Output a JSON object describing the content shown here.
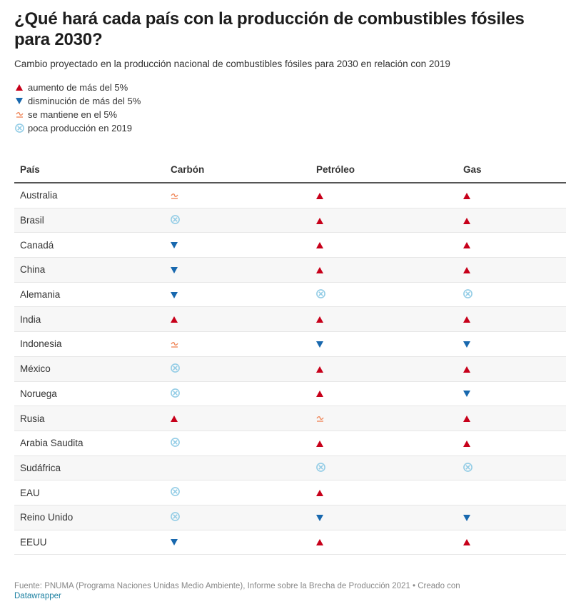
{
  "header": {
    "title": "¿Qué hará cada país con la producción de combustibles fósiles para 2030?",
    "subtitle": "Cambio proyectado en la producción nacional de combustibles fósiles para 2030 en relación con 2019"
  },
  "colors": {
    "increase": "#c7001a",
    "decrease": "#1868ae",
    "stable": "#f08a5d",
    "low": "#94cde6"
  },
  "legend": [
    {
      "symbol": "increase",
      "icon": "triangle-up-icon",
      "label": "aumento de más del 5%"
    },
    {
      "symbol": "decrease",
      "icon": "triangle-down-icon",
      "label": "disminución de más del 5%"
    },
    {
      "symbol": "stable",
      "icon": "approx-equal-icon",
      "label": "se mantiene en el 5%"
    },
    {
      "symbol": "low",
      "icon": "circled-x-icon",
      "label": "poca producción en 2019"
    }
  ],
  "chart_data": {
    "type": "table",
    "title": "¿Qué hará cada país con la producción de combustibles fósiles para 2030?",
    "subtitle": "Cambio proyectado en la producción nacional de combustibles fósiles para 2030 en relación con 2019",
    "columns": [
      "País",
      "Carbón",
      "Petróleo",
      "Gas"
    ],
    "rows": [
      {
        "country": "Australia",
        "coal": "stable",
        "oil": "increase",
        "gas": "increase"
      },
      {
        "country": "Brasil",
        "coal": "low",
        "oil": "increase",
        "gas": "increase"
      },
      {
        "country": "Canadá",
        "coal": "decrease",
        "oil": "increase",
        "gas": "increase"
      },
      {
        "country": "China",
        "coal": "decrease",
        "oil": "increase",
        "gas": "increase"
      },
      {
        "country": "Alemania",
        "coal": "decrease",
        "oil": "low",
        "gas": "low"
      },
      {
        "country": "India",
        "coal": "increase",
        "oil": "increase",
        "gas": "increase"
      },
      {
        "country": "Indonesia",
        "coal": "stable",
        "oil": "decrease",
        "gas": "decrease"
      },
      {
        "country": "México",
        "coal": "low",
        "oil": "increase",
        "gas": "increase"
      },
      {
        "country": "Noruega",
        "coal": "low",
        "oil": "increase",
        "gas": "decrease"
      },
      {
        "country": "Rusia",
        "coal": "increase",
        "oil": "stable",
        "gas": "increase"
      },
      {
        "country": "Arabia Saudita",
        "coal": "low",
        "oil": "increase",
        "gas": "increase"
      },
      {
        "country": "Sudáfrica",
        "coal": "",
        "oil": "low",
        "gas": "low"
      },
      {
        "country": "EAU",
        "coal": "low",
        "oil": "increase",
        "gas": ""
      },
      {
        "country": "Reino Unido",
        "coal": "low",
        "oil": "decrease",
        "gas": "decrease"
      },
      {
        "country": "EEUU",
        "coal": "decrease",
        "oil": "increase",
        "gas": "increase"
      }
    ]
  },
  "footer": {
    "source": "Fuente: PNUMA (Programa Naciones Unidas Medio Ambiente), Informe sobre la Brecha de Producción 2021 • Creado con",
    "credit_link": "Datawrapper"
  }
}
